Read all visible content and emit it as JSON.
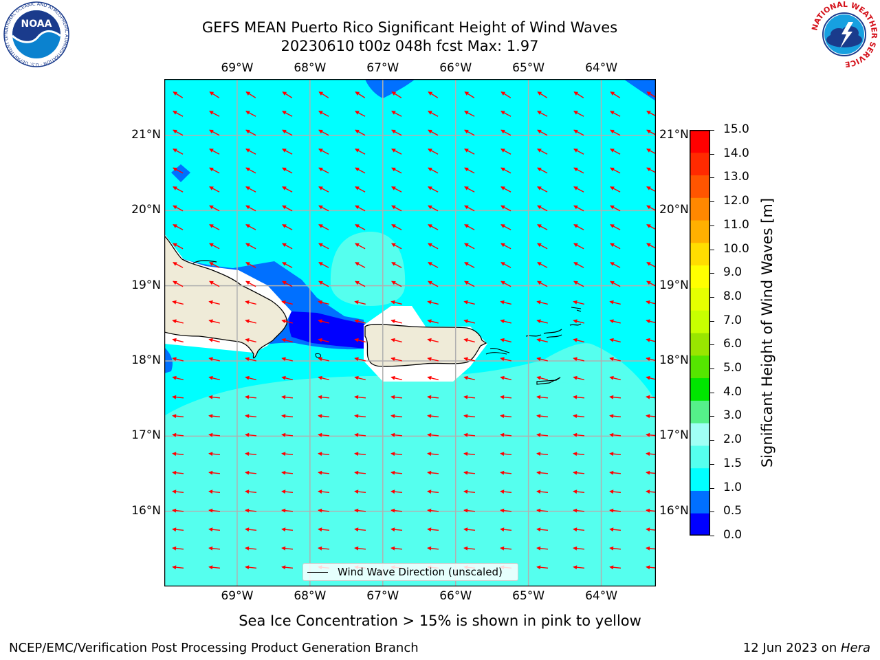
{
  "header": {
    "title_line1": "GEFS MEAN Puerto Rico Significant Height of Wind Waves",
    "title_line2": "20230610 t00z 048h fcst   Max: 1.97"
  },
  "logos": {
    "noaa_text": "NOAA",
    "noaa_ring": "NATIONAL OCEANIC AND ATMOSPHERIC ADMINISTRATION · U.S. DEPARTMENT OF COMMERCE",
    "nws_ring": "NATIONAL WEATHER SERVICE"
  },
  "map": {
    "lon_labels": [
      "69°W",
      "68°W",
      "67°W",
      "66°W",
      "65°W",
      "64°W"
    ],
    "lat_labels": [
      "21°N",
      "20°N",
      "19°N",
      "18°N",
      "17°N",
      "16°N"
    ],
    "lon_values": [
      -69,
      -68,
      -67,
      -66,
      -65,
      -64
    ],
    "lat_values": [
      21,
      20,
      19,
      18,
      17,
      16
    ],
    "extent": {
      "lon": [
        -70,
        -63.25
      ],
      "lat": [
        15,
        21.75
      ]
    },
    "field_max": 1.97,
    "arrow_color": "#ff0000",
    "land_color": "#efebd8",
    "grid": true
  },
  "colorbar": {
    "label": "Significant Height of Wind Waves [m]",
    "ticks": [
      "15.0",
      "14.0",
      "13.0",
      "12.0",
      "11.0",
      "10.0",
      "9.0",
      "8.0",
      "7.0",
      "6.0",
      "5.0",
      "4.0",
      "3.0",
      "2.0",
      "1.5",
      "1.0",
      "0.5",
      "0.0"
    ],
    "colors": [
      "#0000ff",
      "#0070ff",
      "#00ffff",
      "#55ffee",
      "#a0fff5",
      "#55f08a",
      "#00e600",
      "#55e600",
      "#99e600",
      "#c8ff00",
      "#e6ff00",
      "#ffff00",
      "#ffdd00",
      "#ffb000",
      "#ff8800",
      "#ff5500",
      "#ff2a00",
      "#ff0000"
    ]
  },
  "legend": {
    "label": "Wind Wave Direction (unscaled)"
  },
  "footer": {
    "note": "Sea Ice Concentration > 15% is shown in pink to yellow",
    "left": "NCEP/EMC/Verification Post Processing Product Generation Branch",
    "right_prefix": "12 Jun 2023 on ",
    "right_machine": "Hera"
  }
}
